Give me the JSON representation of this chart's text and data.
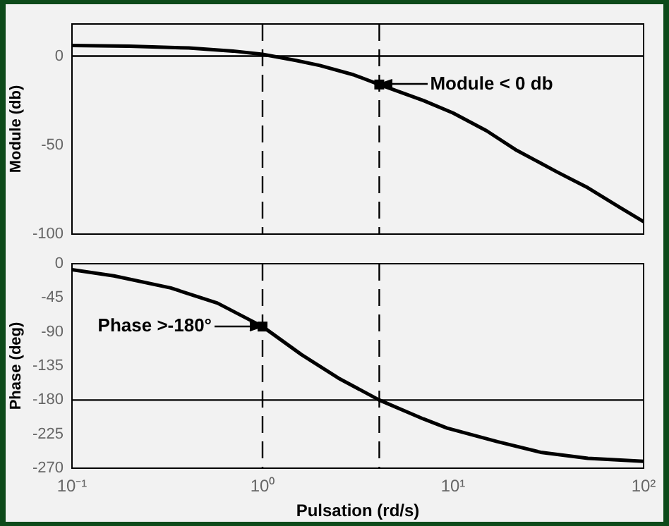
{
  "chart_data": [
    {
      "type": "line",
      "ylabel": "Module (db)",
      "log": "x",
      "xlim": [
        0.1,
        100
      ],
      "xticks": [
        {
          "value": 0.1,
          "label": null
        },
        {
          "value": 1,
          "label": null
        },
        {
          "value": 10,
          "label": null
        },
        {
          "value": 100,
          "label": null
        }
      ],
      "ylim": [
        -100,
        18
      ],
      "yticks": [
        0,
        -50,
        -100
      ],
      "tick_labels": "y",
      "grid": false,
      "marker": "none",
      "x": [
        0.1,
        0.2,
        0.41,
        0.7,
        1,
        1.5,
        2,
        3,
        4.1,
        7,
        10,
        15,
        21.6,
        35,
        51,
        75,
        100
      ],
      "series": [
        {
          "color": "#000000",
          "values": [
            5.9,
            5.5,
            4.5,
            2.8,
            1,
            -2.5,
            -5.3,
            -10.5,
            -16,
            -25,
            -32,
            -42,
            -53,
            -65,
            -74,
            -85,
            -93
          ]
        }
      ],
      "ref_lines": [
        {
          "axis": "y",
          "value": 0,
          "color": "#000000",
          "line_style": "solid"
        },
        {
          "axis": "x",
          "value": 1,
          "color": "#000000",
          "line_style": "dashed"
        },
        {
          "axis": "x",
          "value": 4.1,
          "color": "#000000",
          "line_style": "dashed"
        }
      ],
      "annotations": [
        {
          "text": "Module < 0 db",
          "x": 4.1,
          "y": -16
        }
      ]
    },
    {
      "type": "line",
      "xlabel": "Pulsation (rd/s)",
      "ylabel": "Phase (deg)",
      "log": "x",
      "xlim": [
        0.1,
        100
      ],
      "xticks": [
        {
          "value": 0.1,
          "label": "10⁻¹"
        },
        {
          "value": 1,
          "label": "10⁰"
        },
        {
          "value": 10,
          "label": "10¹"
        },
        {
          "value": 100,
          "label": "10²"
        }
      ],
      "ylim": [
        -270,
        0
      ],
      "yticks": [
        0,
        -45,
        -90,
        -135,
        -180,
        -225,
        -270
      ],
      "grid": false,
      "marker": "none",
      "x": [
        0.1,
        0.166,
        0.33,
        0.58,
        1,
        1.6,
        2.5,
        4.1,
        7,
        9.3,
        17.1,
        28.8,
        51,
        100
      ],
      "series": [
        {
          "color": "#000000",
          "values": [
            -8,
            -16,
            -32,
            -52,
            -83,
            -120,
            -151,
            -180,
            -205,
            -217,
            -235,
            -249,
            -257,
            -261
          ]
        }
      ],
      "ref_lines": [
        {
          "axis": "y",
          "value": -180,
          "color": "#000000",
          "line_style": "solid"
        },
        {
          "axis": "x",
          "value": 1,
          "color": "#000000",
          "line_style": "dashed"
        },
        {
          "axis": "x",
          "value": 4.1,
          "color": "#000000",
          "line_style": "dashed"
        }
      ],
      "annotations": [
        {
          "text": "Phase >-180°",
          "x": 1,
          "y": -83
        }
      ]
    }
  ]
}
